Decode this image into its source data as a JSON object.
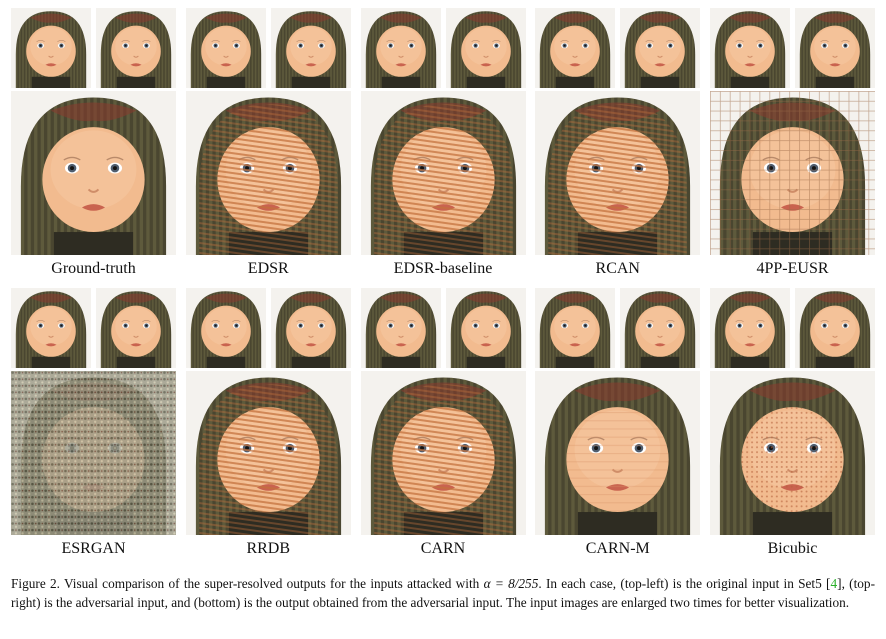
{
  "rows": [
    {
      "panels": [
        {
          "label": "Ground-truth",
          "style": "clean"
        },
        {
          "label": "EDSR",
          "style": "stripes"
        },
        {
          "label": "EDSR-baseline",
          "style": "stripes"
        },
        {
          "label": "RCAN",
          "style": "stripes"
        },
        {
          "label": "4PP-EUSR",
          "style": "grid"
        }
      ]
    },
    {
      "panels": [
        {
          "label": "ESRGAN",
          "style": "noise"
        },
        {
          "label": "RRDB",
          "style": "stripes"
        },
        {
          "label": "CARN",
          "style": "stripes"
        },
        {
          "label": "CARN-M",
          "style": "light"
        },
        {
          "label": "Bicubic",
          "style": "dots"
        }
      ]
    }
  ],
  "caption": {
    "prefix": "Figure 2. Visual comparison of the super-resolved outputs for the inputs attacked with ",
    "math": "α = 8/255",
    "mid": ". In each case, (top-left) is the original input in Set5 [",
    "cite": "4",
    "suffix": "], (top-right) is the adversarial input, and (bottom) is the output obtained from the adversarial input. The input images are enlarged two times for better visualization."
  },
  "colors": {
    "skin": "#f2bb8f",
    "hat": "#5e5a3c",
    "hat_red": "#8a3b2e",
    "background": "#f4f2ee",
    "cite": "#2ab02a"
  }
}
